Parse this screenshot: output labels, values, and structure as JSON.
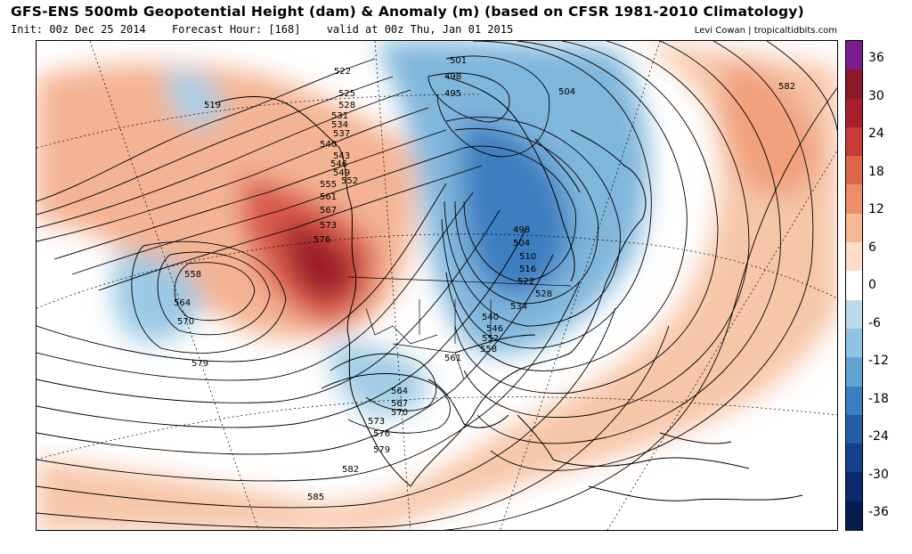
{
  "header": {
    "title": "GFS-ENS 500mb Geopotential Height (dam) & Anomaly (m) (based on CFSR 1981-2010 Climatology)",
    "init": "Init: 00z Dec 25 2014",
    "forecast_hour": "Forecast Hour: [168]",
    "valid": "valid at 00z Thu, Jan 01 2015",
    "credit": "Levi Cowan | tropicaltidbits.com"
  },
  "colorbar": {
    "labels": [
      "36",
      "30",
      "24",
      "18",
      "12",
      "6",
      "0",
      "-6",
      "-12",
      "-18",
      "-24",
      "-30",
      "-36"
    ],
    "colors": [
      "#7a1d8f",
      "#8c1a2a",
      "#a8202e",
      "#c73b3a",
      "#de6547",
      "#eb8e67",
      "#f5b896",
      "#fbddc8",
      "#ffffff",
      "#bddaeb",
      "#90c2e1",
      "#62a3d3",
      "#3a7fc0",
      "#245ea6",
      "#17408a",
      "#0b2a6e",
      "#061a4e"
    ]
  },
  "map": {
    "contour_labels": [
      {
        "text": "522"
      },
      {
        "text": "525"
      },
      {
        "text": "528"
      },
      {
        "text": "531"
      },
      {
        "text": "534"
      },
      {
        "text": "537"
      },
      {
        "text": "540"
      },
      {
        "text": "543"
      },
      {
        "text": "546"
      },
      {
        "text": "549"
      },
      {
        "text": "552"
      },
      {
        "text": "555"
      },
      {
        "text": "561"
      },
      {
        "text": "567"
      },
      {
        "text": "573"
      },
      {
        "text": "576"
      },
      {
        "text": "519"
      },
      {
        "text": "558"
      },
      {
        "text": "564"
      },
      {
        "text": "570"
      },
      {
        "text": "579"
      },
      {
        "text": "501"
      },
      {
        "text": "498"
      },
      {
        "text": "495"
      },
      {
        "text": "504"
      },
      {
        "text": "498"
      },
      {
        "text": "504"
      },
      {
        "text": "510"
      },
      {
        "text": "516"
      },
      {
        "text": "522"
      },
      {
        "text": "528"
      },
      {
        "text": "534"
      },
      {
        "text": "540"
      },
      {
        "text": "546"
      },
      {
        "text": "552"
      },
      {
        "text": "558"
      },
      {
        "text": "561"
      },
      {
        "text": "564"
      },
      {
        "text": "567"
      },
      {
        "text": "570"
      },
      {
        "text": "573"
      },
      {
        "text": "576"
      },
      {
        "text": "579"
      },
      {
        "text": "582"
      },
      {
        "text": "585"
      },
      {
        "text": "582"
      }
    ]
  }
}
